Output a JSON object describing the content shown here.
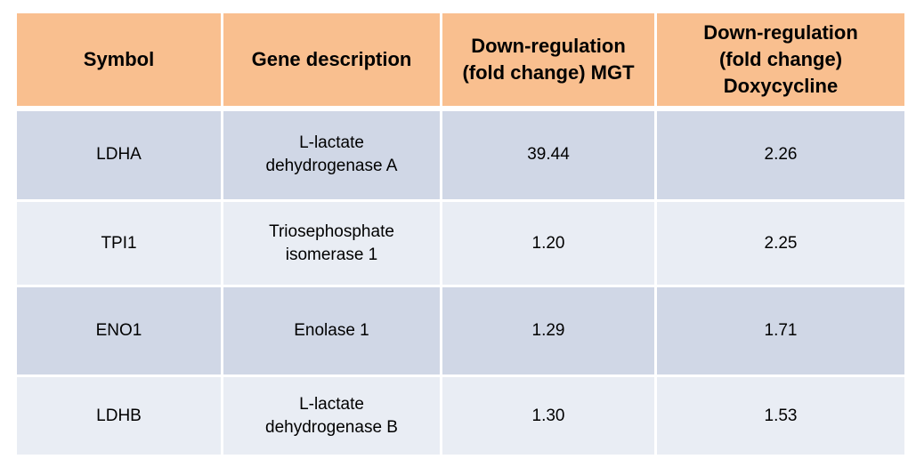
{
  "table": {
    "headers": [
      "Symbol",
      "Gene description",
      "Down-regulation (fold change) MGT",
      "Down-regulation (fold change) Doxycycline"
    ],
    "rows": [
      {
        "symbol": "LDHA",
        "description": "L-lactate dehydrogenase A",
        "mgt": "39.44",
        "doxycycline": "2.26"
      },
      {
        "symbol": "TPI1",
        "description": "Triosephosphate isomerase 1",
        "mgt": "1.20",
        "doxycycline": "2.25"
      },
      {
        "symbol": "ENO1",
        "description": "Enolase 1",
        "mgt": "1.29",
        "doxycycline": "1.71"
      },
      {
        "symbol": "LDHB",
        "description": "L-lactate dehydrogenase B",
        "mgt": "1.30",
        "doxycycline": "1.53"
      }
    ],
    "colors": {
      "header_bg": "#f9bf8f",
      "row_dark_bg": "#d0d7e6",
      "row_light_bg": "#e9edf4"
    }
  }
}
